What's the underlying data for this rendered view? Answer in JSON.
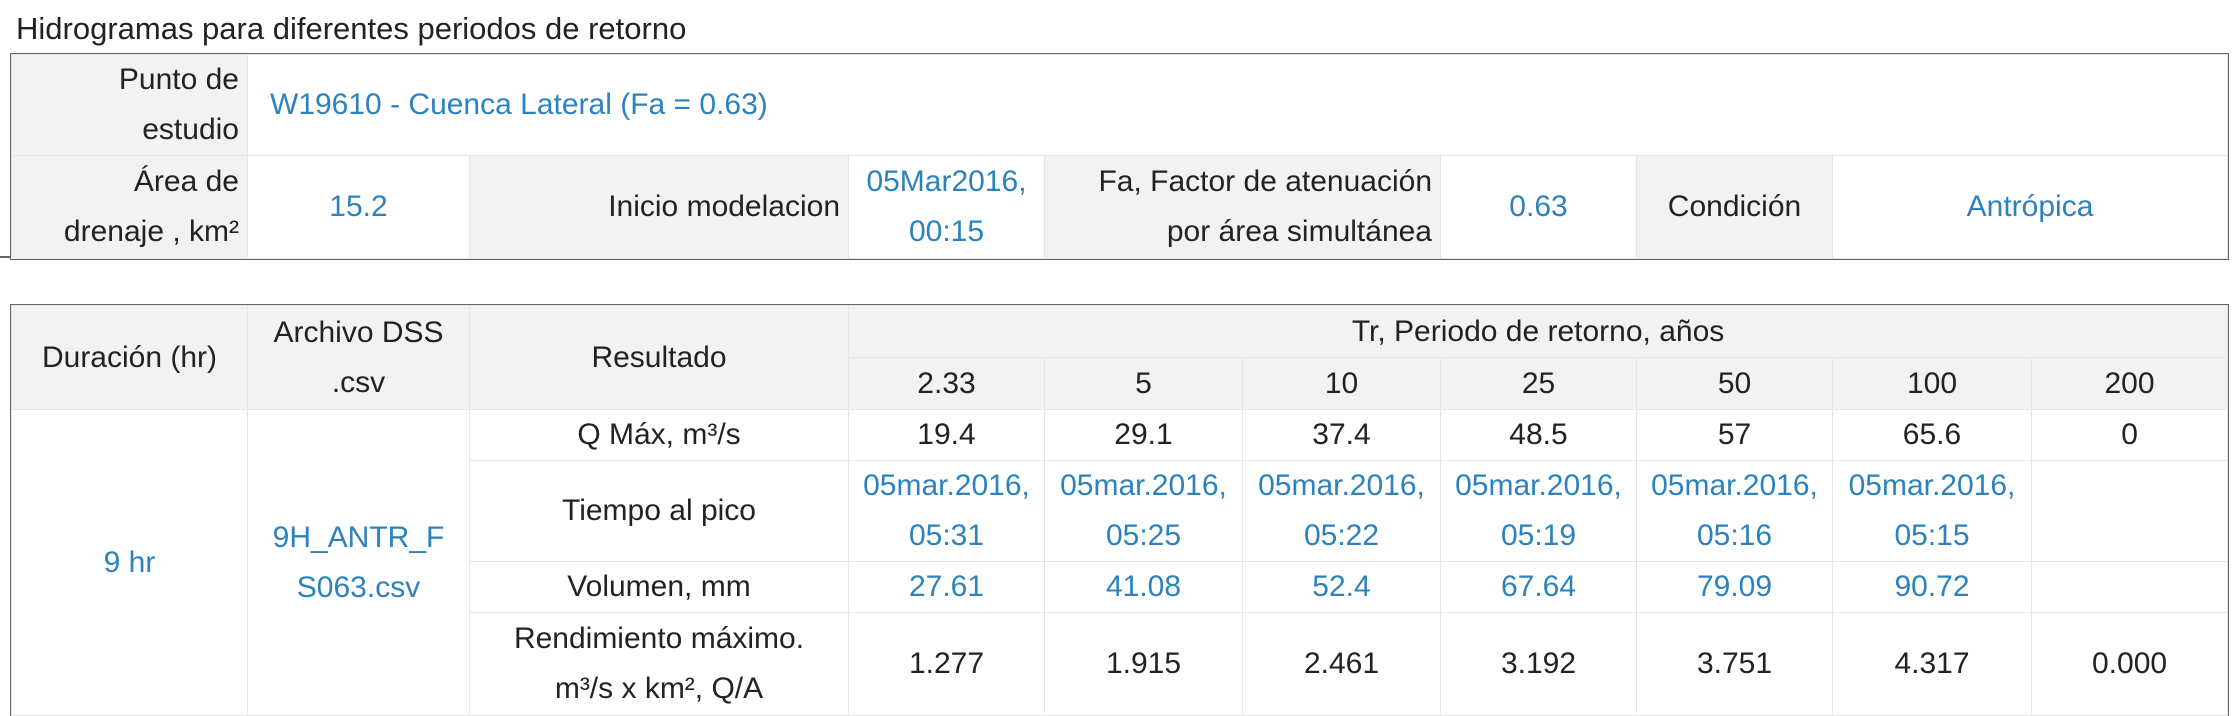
{
  "title": "Hidrogramas para diferentes periodos de retorno",
  "study_point": {
    "label": "Punto de estudio",
    "value": "W19610 - Cuenca Lateral (Fa = 0.63)"
  },
  "summary": [
    {
      "label": "Área de drenaje , km²",
      "value": "15.2"
    },
    {
      "label": "Inicio modelacion",
      "value": "05Mar2016, 00:15"
    },
    {
      "label": "Fa, Factor de atenuación por área simultánea",
      "value": "0.63"
    },
    {
      "label": "Condición",
      "value": "Antrópica"
    }
  ],
  "results": {
    "headers": {
      "duration": "Duración (hr)",
      "file": "Archivo DSS .csv",
      "result": "Resultado",
      "return_period": "Tr, Periodo de retorno, años"
    },
    "periods": [
      "2.33",
      "5",
      "10",
      "25",
      "50",
      "100",
      "200"
    ],
    "duration": "9 hr",
    "file": "9H_ANTR_FS063.csv",
    "rows": [
      {
        "label": "Q Máx, m³/s",
        "values": [
          "19.4",
          "29.1",
          "37.4",
          "48.5",
          "57",
          "65.6",
          "0"
        ]
      },
      {
        "label": "Tiempo al pico",
        "values": [
          "05mar.2016, 05:31",
          "05mar.2016, 05:25",
          "05mar.2016, 05:22",
          "05mar.2016, 05:19",
          "05mar.2016, 05:16",
          "05mar.2016, 05:15",
          null
        ]
      },
      {
        "label": "Volumen, mm",
        "values": [
          "27.61",
          "41.08",
          "52.4",
          "67.64",
          "79.09",
          "90.72",
          null
        ]
      },
      {
        "label": "Rendimiento máximo. m³/s x km², Q/A",
        "values": [
          "1.277",
          "1.915",
          "2.461",
          "3.192",
          "3.751",
          "4.317",
          "0.000"
        ]
      }
    ]
  }
}
